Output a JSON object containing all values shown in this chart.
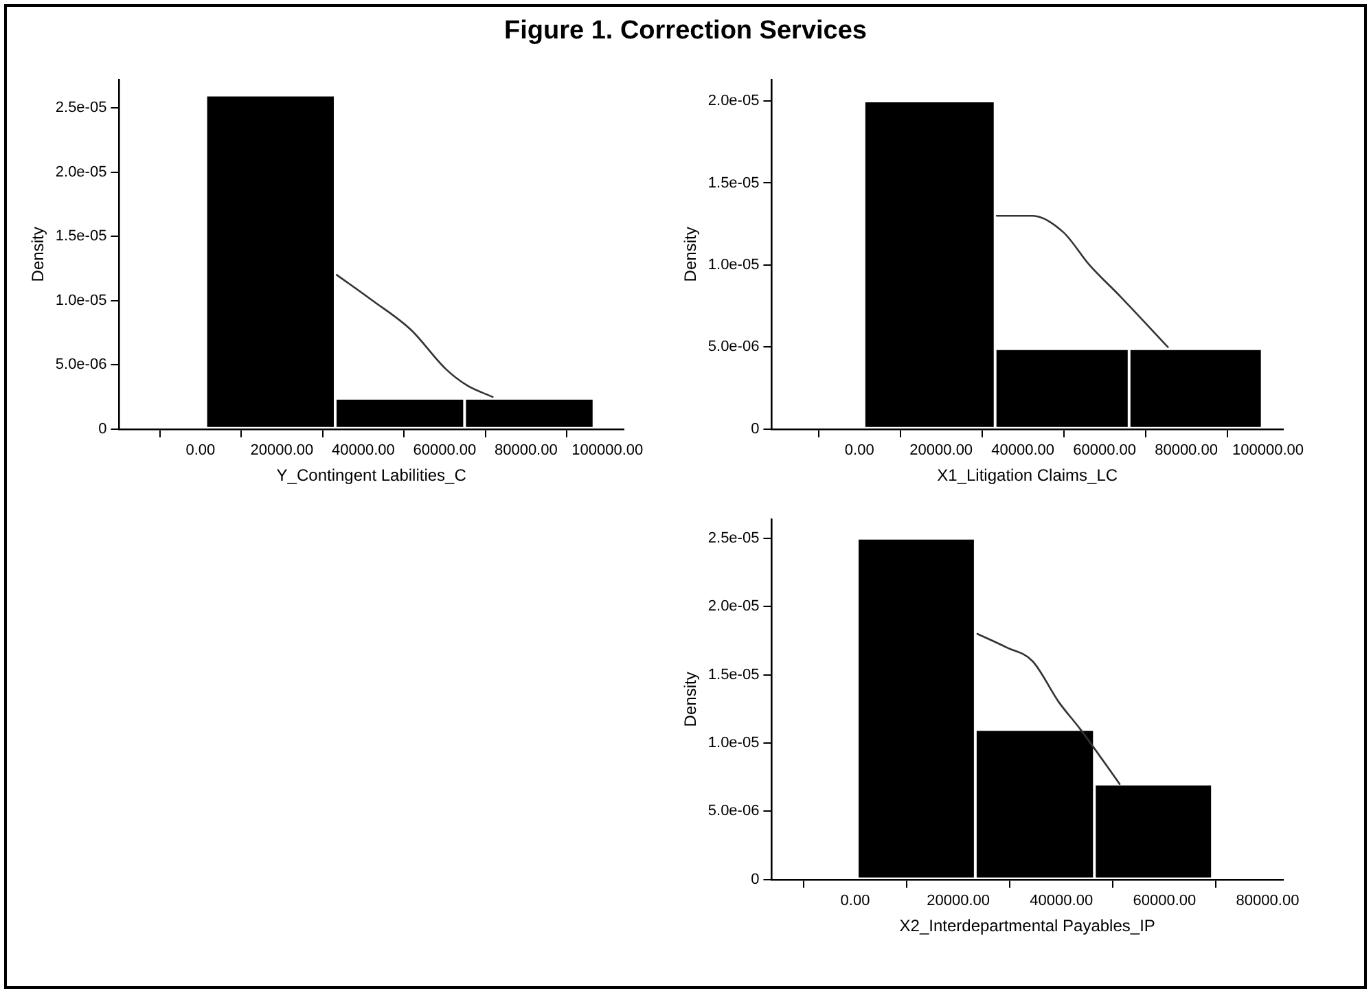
{
  "chart_data": [
    {
      "type": "histogram",
      "title": "Figure 1. Correction Services",
      "xlabel": "Y_Contingent Labilities_C",
      "ylabel": "Density",
      "grid": false,
      "legend": false,
      "marker": "none",
      "xlim": [
        -20000,
        104000
      ],
      "ylim": [
        0,
        2.72e-05
      ],
      "xticks": [
        {
          "value": 0,
          "label": "0.00"
        },
        {
          "value": 20000,
          "label": "20000.00"
        },
        {
          "value": 40000,
          "label": "40000.00"
        },
        {
          "value": 60000,
          "label": "60000.00"
        },
        {
          "value": 80000,
          "label": "80000.00"
        },
        {
          "value": 100000,
          "label": "100000.00"
        }
      ],
      "yticks": [
        {
          "value": 0,
          "label": "0"
        },
        {
          "value": 5e-06,
          "label": "5.0e-06"
        },
        {
          "value": 1e-05,
          "label": "1.0e-05"
        },
        {
          "value": 1.5e-05,
          "label": "1.5e-05"
        },
        {
          "value": 2e-05,
          "label": "2.0e-05"
        },
        {
          "value": 2.5e-05,
          "label": "2.5e-05"
        }
      ],
      "series": [
        {
          "type": "histogram",
          "color": "#000000",
          "bins": [
            1300,
            33100,
            64900,
            96700
          ],
          "values": [
            2.6e-05,
            2.4e-06,
            2.4e-06
          ]
        },
        {
          "type": "line",
          "color": "#333333",
          "x": [
            33500,
            42300,
            51800,
            60200,
            65500,
            71800
          ],
          "values": [
            1.2e-05,
            1e-05,
            7.7e-06,
            4.7e-06,
            3.4e-06,
            2.5e-06
          ]
        }
      ]
    },
    {
      "type": "histogram",
      "xlabel": "X1_Litigation Claims_LC",
      "ylabel": "Density",
      "grid": false,
      "legend": false,
      "marker": "none",
      "xlim": [
        -21500,
        103700
      ],
      "ylim": [
        0,
        2.13e-05
      ],
      "xticks": [
        {
          "value": 0,
          "label": "0.00"
        },
        {
          "value": 20000,
          "label": "20000.00"
        },
        {
          "value": 40000,
          "label": "40000.00"
        },
        {
          "value": 60000,
          "label": "60000.00"
        },
        {
          "value": 80000,
          "label": "80000.00"
        },
        {
          "value": 100000,
          "label": "100000.00"
        }
      ],
      "yticks": [
        {
          "value": 0,
          "label": "0"
        },
        {
          "value": 5e-06,
          "label": "5.0e-06"
        },
        {
          "value": 1e-05,
          "label": "1.0e-05"
        },
        {
          "value": 1.5e-05,
          "label": "1.5e-05"
        },
        {
          "value": 2e-05,
          "label": "2.0e-05"
        }
      ],
      "series": [
        {
          "type": "histogram",
          "color": "#000000",
          "bins": [
            1100,
            33200,
            66000,
            98600
          ],
          "values": [
            2e-05,
            4.9e-06,
            4.9e-06
          ]
        },
        {
          "type": "line",
          "color": "#333333",
          "x": [
            33600,
            42400,
            49900,
            56300,
            63800,
            75500
          ],
          "values": [
            1.3e-05,
            1.3e-05,
            1.2e-05,
            1e-05,
            8.1e-06,
            5e-06
          ]
        }
      ]
    },
    {
      "type": "histogram",
      "xlabel": "X2_Interdepartmental Payables_IP",
      "ylabel": "Density",
      "grid": false,
      "legend": false,
      "marker": "none",
      "xlim": [
        -16200,
        83000
      ],
      "ylim": [
        0,
        2.64e-05
      ],
      "xticks": [
        {
          "value": 0,
          "label": "0.00"
        },
        {
          "value": 20000,
          "label": "20000.00"
        },
        {
          "value": 40000,
          "label": "40000.00"
        },
        {
          "value": 60000,
          "label": "60000.00"
        },
        {
          "value": 80000,
          "label": "80000.00"
        }
      ],
      "yticks": [
        {
          "value": 0,
          "label": "0"
        },
        {
          "value": 5e-06,
          "label": "5.0e-06"
        },
        {
          "value": 1e-05,
          "label": "1.0e-05"
        },
        {
          "value": 1.5e-05,
          "label": "1.5e-05"
        },
        {
          "value": 2e-05,
          "label": "2.0e-05"
        },
        {
          "value": 2.5e-05,
          "label": "2.5e-05"
        }
      ],
      "series": [
        {
          "type": "histogram",
          "color": "#000000",
          "bins": [
            400,
            23300,
            46400,
            69300
          ],
          "values": [
            2.5e-05,
            1.1e-05,
            7e-06
          ]
        },
        {
          "type": "line",
          "color": "#333333",
          "x": [
            23700,
            29400,
            34400,
            39500,
            43700,
            51300
          ],
          "values": [
            1.8e-05,
            1.7e-05,
            1.6e-05,
            1.3e-05,
            1.1e-05,
            7e-06
          ]
        }
      ]
    }
  ]
}
